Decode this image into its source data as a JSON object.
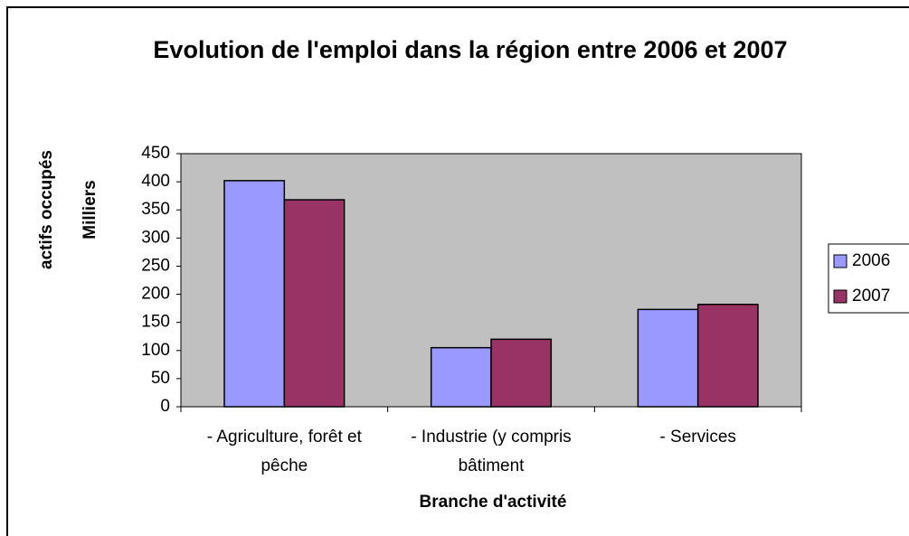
{
  "chart_data": {
    "type": "bar",
    "title": "Evolution de l'emploi dans la région entre 2006 et 2007",
    "y_label": [
      "actifs occupés",
      "Milliers"
    ],
    "x_label": "Branche d'activité",
    "categories": [
      "- Agriculture, forêt et pêche",
      "- Industrie (y compris bâtiment",
      "- Services"
    ],
    "series": [
      {
        "name": "2006",
        "color": "#9999ff",
        "values": [
          402,
          105,
          173
        ]
      },
      {
        "name": "2007",
        "color": "#993366",
        "values": [
          368,
          120,
          182
        ]
      }
    ],
    "ylim": [
      0,
      450
    ],
    "yticks": [
      0,
      50,
      100,
      150,
      200,
      250,
      300,
      350,
      400,
      450
    ],
    "plot_color": "#c0c0c0",
    "legend": "right"
  }
}
